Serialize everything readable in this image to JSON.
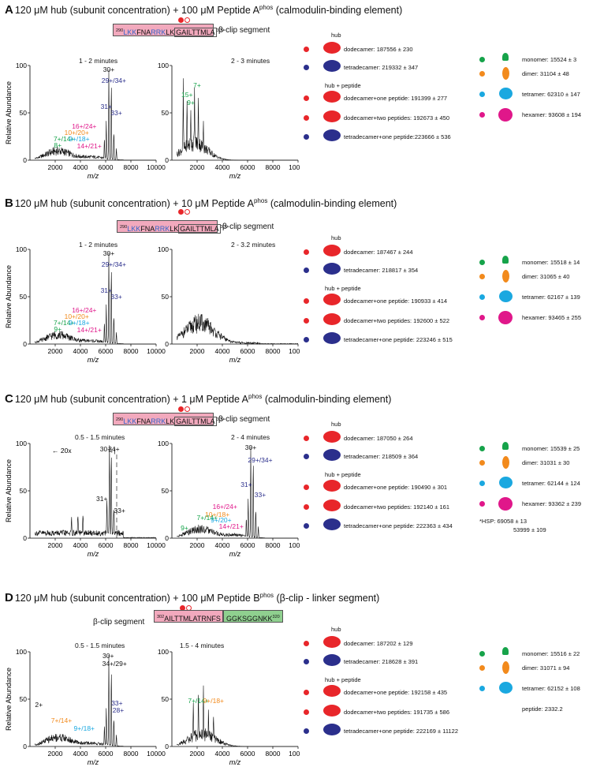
{
  "colors": {
    "red": "#e8262a",
    "navy": "#2b2f8c",
    "green": "#16a34a",
    "orange": "#f28a1c",
    "cyan": "#1aa8e0",
    "magenta": "#e0178a",
    "pink": "#f2a9bd"
  },
  "panels": [
    {
      "letter": "A",
      "title": "120 μM hub (subunit concentration) + 100 μM Peptide A",
      "title_sup": "phos",
      "title_tail": "(calmodulin-binding element)",
      "seq_start": "290",
      "seq_a": "LKK",
      "seq_b": "FNA",
      "seq_c": "RRK",
      "seq_d": "LK",
      "seq_e": "GAILTTMLA",
      "seq_end": "309",
      "segment": "β-clip segment",
      "time1": "1 - 2 minutes",
      "time2": "2 - 3 minutes",
      "hub_label": "hub",
      "hub_peptide_label": "hub + peptide",
      "legend": [
        "dodecamer: 187556 ± 230",
        "tetradecamer: 219332 ± 347",
        "dodecamer+one peptide: 191399 ± 277",
        "dodecamer+two peptides: 192673 ± 450",
        "tetradecamer+one peptide:223666 ± 536"
      ],
      "species": [
        "monomer: 15524 ± 3",
        "dimer: 31104 ± 48",
        "tetramer: 62310 ± 147",
        "hexamer: 93608 ± 194"
      ],
      "extra": [],
      "annot1": [
        "30+",
        "29+/34+",
        "31+",
        "33+",
        "16+/24+",
        "10+/20+",
        "7+/14+",
        "9+/18+",
        "14+/21+",
        "8+"
      ],
      "annot2": [
        "7+",
        "15+",
        "9+"
      ]
    },
    {
      "letter": "B",
      "title": "120 μM hub (subunit concentration) + 10 μM Peptide A",
      "title_sup": "phos",
      "title_tail": "(calmodulin-binding element)",
      "seq_start": "290",
      "seq_a": "LKK",
      "seq_b": "FNA",
      "seq_c": "RRK",
      "seq_d": "LK",
      "seq_e": "GAILTTMLA",
      "seq_end": "309",
      "segment": "β-clip segment",
      "time1": "1 - 2 minutes",
      "time2": "2 - 3.2 minutes",
      "hub_label": "hub",
      "hub_peptide_label": "hub + peptide",
      "legend": [
        "dodecamer: 187467 ± 244",
        "tetradecamer: 218817 ± 354",
        "dodecamer+one peptide: 190933 ± 414",
        "dodecamer+two peptides: 192600 ± 522",
        "tetradecamer+one peptide: 223246 ± 515"
      ],
      "species": [
        "monomer: 15518 ± 14",
        "dimer: 31065 ± 40",
        "tetramer: 62167 ± 139",
        "hexamer: 93465 ± 255"
      ],
      "extra": [],
      "annot1": [
        "30+",
        "29+/34+",
        "31+",
        "33+",
        "16+/24+",
        "10+/20+",
        "7+/14+",
        "9+/18+",
        "14+/21+",
        "9+"
      ],
      "annot2": []
    },
    {
      "letter": "C",
      "title": "120 μM hub (subunit concentration) + 1 μM Peptide A",
      "title_sup": "phos",
      "title_tail": "(calmodulin-binding element)",
      "seq_start": "290",
      "seq_a": "LKK",
      "seq_b": "FNA",
      "seq_c": "RRK",
      "seq_d": "LK",
      "seq_e": "GAILTTMLA",
      "seq_end": "309",
      "segment": "β-clip segment",
      "time1": "0.5 - 1.5 minutes",
      "time2": "2 - 4 minutes",
      "hub_label": "hub",
      "hub_peptide_label": "hub + peptide",
      "legend": [
        "dodecamer: 187050 ± 264",
        "tetradecamer: 218509 ± 364",
        "dodecamer+one peptide: 190490 ± 301",
        "dodecamer+two peptides: 192140 ± 161",
        "tetradecamer+one peptide: 222363 ± 434"
      ],
      "species": [
        "monomer: 15539 ± 25",
        "dimer: 31031 ± 30",
        "tetramer: 62144 ± 124",
        "hexamer: 93362 ± 239"
      ],
      "extra": [
        "*HSP:  69058 ± 13",
        "53999 ± 109"
      ],
      "zoom": "20x",
      "annot1": [
        "30+",
        "34+",
        "31+",
        "33+"
      ],
      "annot2": [
        "30+",
        "29+/34+",
        "31+",
        "33+",
        "16+/24+",
        "10+/18+",
        "7+/14+",
        "9+/20+",
        "14+/21+",
        "9+"
      ]
    },
    {
      "letter": "D",
      "title": "120 μM hub (subunit concentration) + 100 μM Peptide B",
      "title_sup": "phos",
      "title_tail": "(β-clip - linker segment)",
      "seq_start": "302",
      "seq_pink": "AILTTMLATRNFS",
      "seq_green": "GGKSGGNKK",
      "seq_end": "320",
      "segment": "β-clip segment",
      "time1": "0.5 - 1.5 minutes",
      "time2": "1.5 - 4 minutes",
      "hub_label": "hub",
      "hub_peptide_label": "hub + peptide",
      "legend": [
        "dodecamer: 187202 ± 129",
        "tetradecamer: 218628 ± 391",
        "dodecamer+one peptide: 192158 ± 435",
        "dodecamer+two peptides: 191735 ± 586",
        "tetradecamer+one peptide: 222169 ± 11122"
      ],
      "species": [
        "monomer: 15516 ± 22",
        "dimer: 31071 ± 94",
        "tetramer: 62152 ± 108",
        "peptide: 2332.2"
      ],
      "extra": [],
      "annot1": [
        "30+",
        "34+/29+",
        "33+",
        "28+",
        "2+",
        "7+/14+",
        "9+/18+"
      ],
      "annot2": [
        "7+/14+",
        "9+/18+"
      ]
    }
  ],
  "axis": {
    "ylabel": "Relative Abundance",
    "xlabel": "m/z",
    "yticks": [
      "0",
      "50",
      "100"
    ],
    "xticks": [
      "2000",
      "4000",
      "6000",
      "8000",
      "10000"
    ]
  }
}
